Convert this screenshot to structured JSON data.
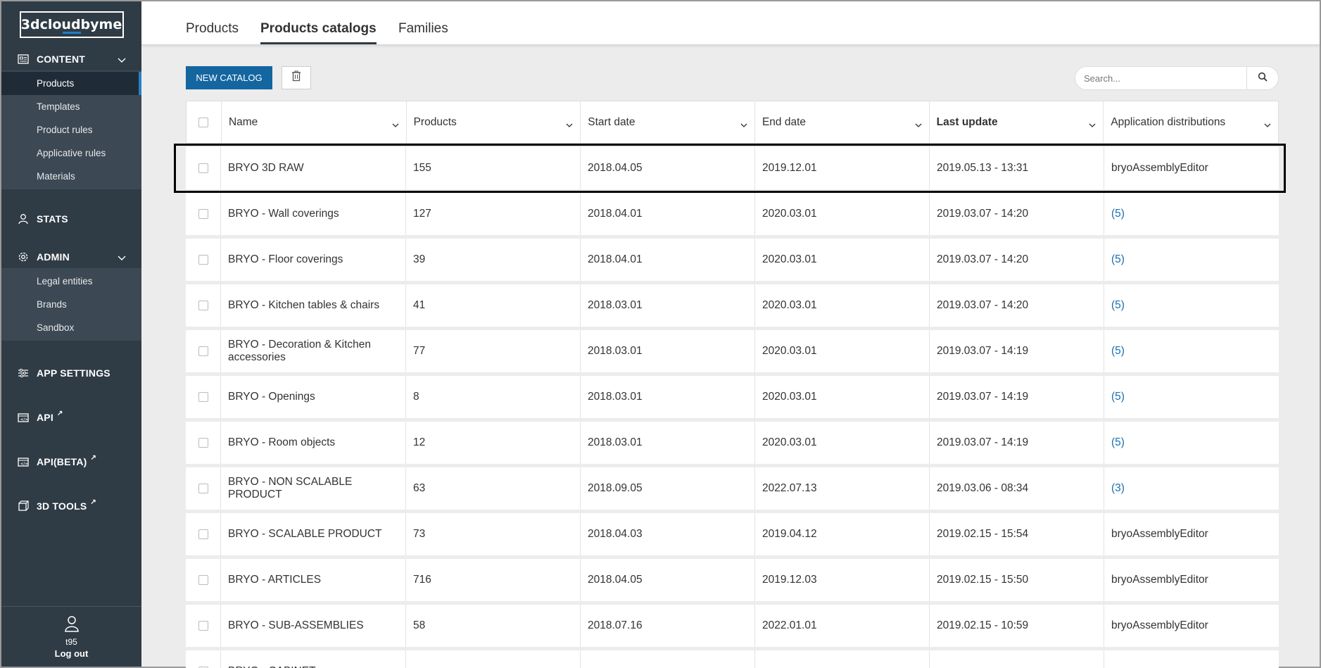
{
  "sidebar": {
    "logo": "3dcloudbyme",
    "content_label": "CONTENT",
    "content_items": [
      "Products",
      "Templates",
      "Product rules",
      "Applicative rules",
      "Materials"
    ],
    "stats_label": "STATS",
    "admin_label": "ADMIN",
    "admin_items": [
      "Legal entities",
      "Brands",
      "Sandbox"
    ],
    "app_settings_label": "APP SETTINGS",
    "api_label": "API",
    "api_beta_label": "API(BETA)",
    "tools_label": "3D TOOLS",
    "user": "t95",
    "logout": "Log out",
    "icons": {
      "content": "content-grid-icon",
      "stats": "user-icon",
      "admin": "gear-icon",
      "app_settings": "sliders-icon",
      "api": "api-icon",
      "tools": "cube-icon",
      "external": "external-link-icon"
    }
  },
  "tabs": [
    "Products",
    "Products catalogs",
    "Families"
  ],
  "active_tab": "Products catalogs",
  "toolbar": {
    "new_catalog": "NEW CATALOG",
    "search_placeholder": "Search..."
  },
  "table": {
    "columns": [
      "Name",
      "Products",
      "Start date",
      "End date",
      "Last update",
      "Application distributions"
    ],
    "rows": [
      {
        "name": "BRYO 3D RAW",
        "products": "155",
        "start": "2018.04.05",
        "end": "2019.12.01",
        "updated": "2019.05.13 - 13:31",
        "app": "bryoAssemblyEditor",
        "app_link": false
      },
      {
        "name": "BRYO - Wall coverings",
        "products": "127",
        "start": "2018.04.01",
        "end": "2020.03.01",
        "updated": "2019.03.07 - 14:20",
        "app": "(5)",
        "app_link": true
      },
      {
        "name": "BRYO - Floor coverings",
        "products": "39",
        "start": "2018.04.01",
        "end": "2020.03.01",
        "updated": "2019.03.07 - 14:20",
        "app": "(5)",
        "app_link": true
      },
      {
        "name": "BRYO - Kitchen tables & chairs",
        "products": "41",
        "start": "2018.03.01",
        "end": "2020.03.01",
        "updated": "2019.03.07 - 14:20",
        "app": "(5)",
        "app_link": true
      },
      {
        "name": "BRYO - Decoration & Kitchen accessories",
        "products": "77",
        "start": "2018.03.01",
        "end": "2020.03.01",
        "updated": "2019.03.07 - 14:19",
        "app": "(5)",
        "app_link": true
      },
      {
        "name": "BRYO - Openings",
        "products": "8",
        "start": "2018.03.01",
        "end": "2020.03.01",
        "updated": "2019.03.07 - 14:19",
        "app": "(5)",
        "app_link": true
      },
      {
        "name": "BRYO - Room objects",
        "products": "12",
        "start": "2018.03.01",
        "end": "2020.03.01",
        "updated": "2019.03.07 - 14:19",
        "app": "(5)",
        "app_link": true
      },
      {
        "name": "BRYO - NON SCALABLE PRODUCT",
        "products": "63",
        "start": "2018.09.05",
        "end": "2022.07.13",
        "updated": "2019.03.06 - 08:34",
        "app": "(3)",
        "app_link": true
      },
      {
        "name": "BRYO - SCALABLE PRODUCT",
        "products": "73",
        "start": "2018.04.03",
        "end": "2019.04.12",
        "updated": "2019.02.15 - 15:54",
        "app": "bryoAssemblyEditor",
        "app_link": false
      },
      {
        "name": "BRYO - ARTICLES",
        "products": "716",
        "start": "2018.04.05",
        "end": "2019.12.03",
        "updated": "2019.02.15 - 15:50",
        "app": "bryoAssemblyEditor",
        "app_link": false
      },
      {
        "name": "BRYO - SUB-ASSEMBLIES",
        "products": "58",
        "start": "2018.07.16",
        "end": "2022.01.01",
        "updated": "2019.02.15 - 10:59",
        "app": "bryoAssemblyEditor",
        "app_link": false
      },
      {
        "name": "BRYO - CABINET",
        "products": "",
        "start": "",
        "end": "",
        "updated": "",
        "app": "",
        "app_link": false
      }
    ]
  },
  "colors": {
    "sidebar_bg": "#2f3b45",
    "accent": "#1466a0",
    "link": "#1a6fb0"
  }
}
